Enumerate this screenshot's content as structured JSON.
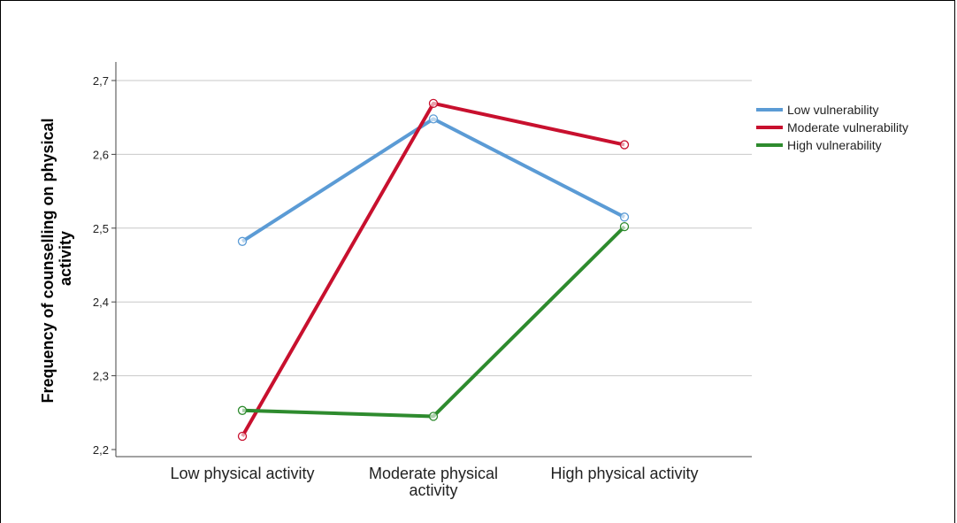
{
  "chart_data": {
    "type": "line",
    "categories": [
      "Low physical activity",
      "Moderate physical activity",
      "High physical activity"
    ],
    "ylabel": "Frequency of counselling on physical activity",
    "xlabel": "",
    "ylim": [
      2.2,
      2.7
    ],
    "yticks": [
      "2,2",
      "2,3",
      "2,4",
      "2,5",
      "2,6",
      "2,7"
    ],
    "grid": true,
    "legend_position": "right",
    "series": [
      {
        "name": "Low vulnerability",
        "color": "#5b9bd5",
        "values": [
          2.482,
          2.648,
          2.515
        ]
      },
      {
        "name": "Moderate vulnerability",
        "color": "#c8102e",
        "values": [
          2.218,
          2.669,
          2.613
        ]
      },
      {
        "name": "High vulnerability",
        "color": "#2e8b2e",
        "values": [
          2.253,
          2.245,
          2.502
        ]
      }
    ]
  }
}
